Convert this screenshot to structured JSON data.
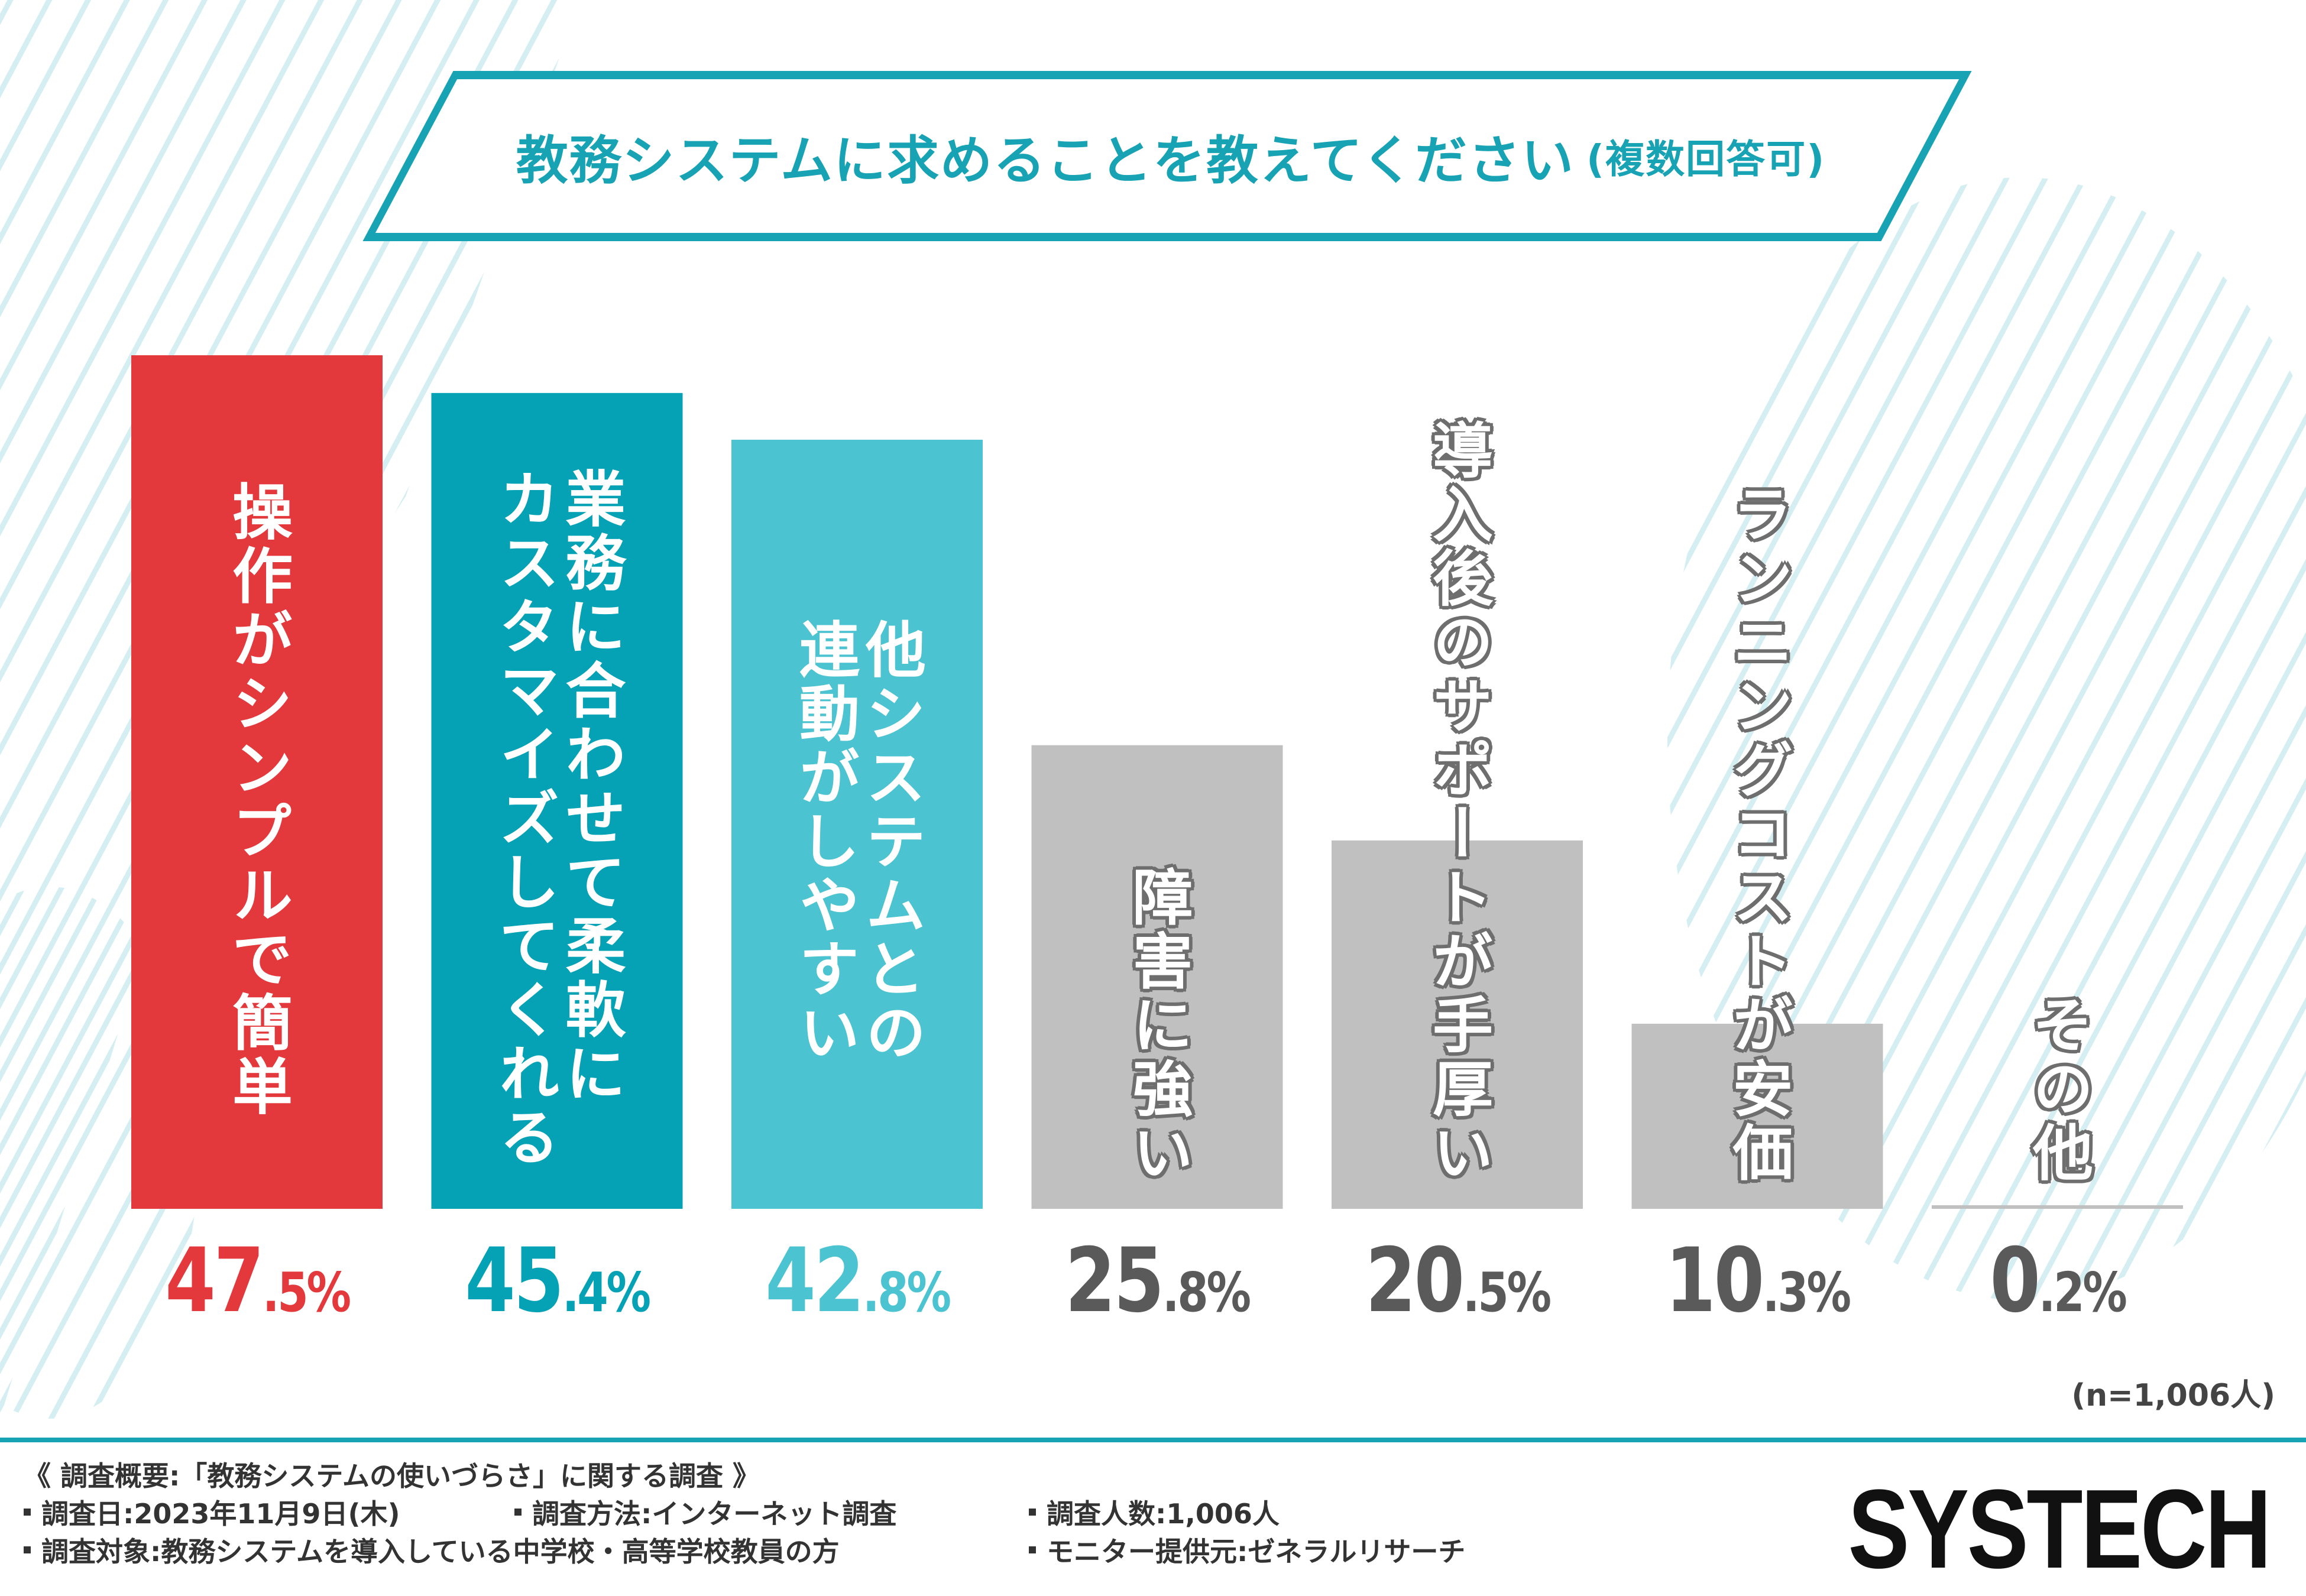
{
  "chart_data": {
    "type": "bar",
    "title": "教務システムに求めることを教えてください",
    "title_note": "(複数回答可)",
    "categories": [
      "操作がシンプルで簡単",
      "業務に合わせて柔軟にカスタマイズしてくれる",
      "他システムとの連動がしやすい",
      "障害に強い",
      "導入後のサポートが手厚い",
      "ランニングコストが安価",
      "その他"
    ],
    "category_label_lines": [
      [
        "操作がシンプルで簡単"
      ],
      [
        "業務に合わせて柔軟に",
        "カスタマイズしてくれる"
      ],
      [
        "他システムとの",
        "連動がしやすい"
      ],
      [
        "障害に強い"
      ],
      [
        "導入後のサポートが手厚い"
      ],
      [
        "ランニングコストが安価"
      ],
      [
        "その他"
      ]
    ],
    "values": [
      47.5,
      45.4,
      42.8,
      25.8,
      20.5,
      10.3,
      0.2
    ],
    "value_labels": [
      {
        "int": "47",
        "dec": ".5%"
      },
      {
        "int": "45",
        "dec": ".4%"
      },
      {
        "int": "42",
        "dec": ".8%"
      },
      {
        "int": "25",
        "dec": ".8%"
      },
      {
        "int": "20",
        "dec": ".5%"
      },
      {
        "int": "10",
        "dec": ".3%"
      },
      {
        "int": "0",
        "dec": ".2%"
      }
    ],
    "colors": [
      "#e3393c",
      "#05a2b6",
      "#4cc3d0",
      "#c0c0c0",
      "#c0c0c0",
      "#c0c0c0",
      "#c0c0c0"
    ],
    "value_label_colors": [
      "#e3393c",
      "#05a2b6",
      "#4cc3d0",
      "#5a5a5a",
      "#5a5a5a",
      "#5a5a5a",
      "#5a5a5a"
    ],
    "ylim": [
      0,
      50
    ],
    "xlabel": "",
    "ylabel": "",
    "sample_note": "(n=1,006人)"
  },
  "footer": {
    "survey_title": "《 調査概要:「教務システムの使いづらさ」に関する調査 》",
    "items": [
      "調査日:2023年11月9日(木)",
      "調査方法:インターネット調査",
      "調査人数:1,006人",
      "調査対象:教務システムを導入している中学校・高等学校教員の方",
      "モニター提供元:ゼネラルリサーチ"
    ]
  },
  "logo": "SYSTECH"
}
